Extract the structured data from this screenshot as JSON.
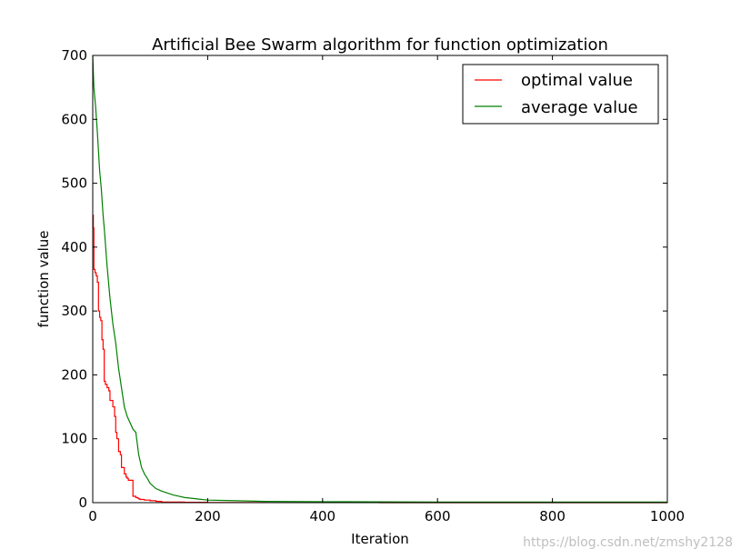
{
  "chart_data": {
    "type": "line",
    "title": "Artificial Bee Swarm algorithm for function optimization",
    "xlabel": "Iteration",
    "ylabel": "function value",
    "xlim": [
      0,
      1000
    ],
    "ylim": [
      0,
      700
    ],
    "xticks": [
      0,
      200,
      400,
      600,
      800,
      1000
    ],
    "yticks": [
      0,
      100,
      200,
      300,
      400,
      500,
      600,
      700
    ],
    "grid": false,
    "legend_position": "top-right",
    "series": [
      {
        "name": "optimal value",
        "color": "#ff0000",
        "step": true,
        "x": [
          0,
          1,
          2,
          4,
          6,
          8,
          10,
          12,
          14,
          16,
          18,
          20,
          22,
          25,
          28,
          30,
          35,
          38,
          40,
          42,
          45,
          48,
          50,
          52,
          55,
          58,
          60,
          62,
          65,
          70,
          75,
          78,
          80,
          82,
          85,
          90,
          100,
          110,
          120,
          140,
          160,
          200,
          300,
          500,
          1000
        ],
        "y": [
          450,
          430,
          365,
          360,
          355,
          345,
          300,
          290,
          285,
          255,
          240,
          190,
          185,
          180,
          175,
          160,
          150,
          135,
          110,
          100,
          80,
          75,
          55,
          55,
          45,
          40,
          38,
          35,
          35,
          10,
          8,
          7,
          6,
          5,
          5,
          4,
          3,
          2,
          1,
          1,
          0.5,
          0.3,
          0.1,
          0,
          0
        ]
      },
      {
        "name": "average value",
        "color": "#008000",
        "step": false,
        "x": [
          0,
          2,
          5,
          8,
          10,
          12,
          15,
          18,
          20,
          25,
          30,
          35,
          40,
          45,
          50,
          55,
          60,
          65,
          70,
          75,
          80,
          85,
          90,
          95,
          100,
          110,
          120,
          130,
          140,
          150,
          160,
          180,
          200,
          250,
          300,
          400,
          600,
          800,
          1000
        ],
        "y": [
          700,
          650,
          620,
          580,
          550,
          520,
          490,
          450,
          430,
          370,
          320,
          280,
          250,
          210,
          180,
          150,
          135,
          125,
          115,
          110,
          75,
          55,
          45,
          38,
          30,
          22,
          18,
          15,
          12,
          10,
          8,
          6,
          4,
          3,
          2,
          1.5,
          1,
          1,
          1
        ]
      }
    ]
  },
  "watermark": "https://blog.csdn.net/zmshy2128"
}
